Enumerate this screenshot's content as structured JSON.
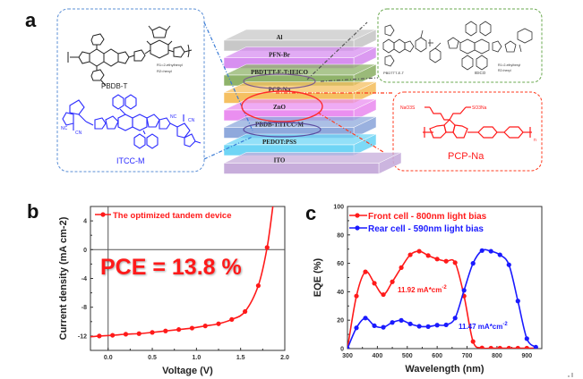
{
  "figure": {
    "panels": {
      "a": {
        "letter": "a"
      },
      "b": {
        "letter": "b"
      },
      "c": {
        "letter": "c"
      }
    },
    "colors": {
      "front_red": "#ff1a1a",
      "rear_blue": "#1a1aff",
      "donor_blue_box": "#5b8fd6",
      "green_box": "#6aa84f",
      "red_box": "#ff3b1f"
    }
  },
  "panel_a": {
    "left_box": {
      "molecule1_name": "PBDB-T",
      "molecule1_subs": [
        "R1=2-ethylhexyl",
        "R2=hexyl"
      ],
      "molecule2_name": "ITCC-M",
      "molecule2_groups": [
        "NC",
        "CN",
        "NC",
        "CN"
      ]
    },
    "top_right_box": {
      "molecule1_name": "PBDTTT-E-T",
      "molecule2_name": "IEICO",
      "subs": [
        "R1=2-ethylhexyl",
        "R2=hexyl"
      ]
    },
    "bottom_right_box": {
      "molecule_name": "PCP-Na",
      "group_left": "NaO3S",
      "group_right": "SO3Na",
      "repeat": "n"
    },
    "stack_layers": [
      {
        "name": "Al",
        "color": "#c8c8c8"
      },
      {
        "name": "PFN-Br",
        "color": "#d78ff0"
      },
      {
        "name": "PBDTTT-E-T:IEICO",
        "color": "#8fb36a"
      },
      {
        "name": "PCP-Na",
        "color": "#f5c062"
      },
      {
        "name": "ZnO",
        "color": "#ea8ff0"
      },
      {
        "name": "PBDB-T:ITCC-M",
        "color": "#8fa9dc"
      },
      {
        "name": "PEDOT:PSS",
        "color": "#6fd5f5"
      },
      {
        "name": "ITO",
        "color": "#c7addb"
      }
    ]
  },
  "chart_data": [
    {
      "id": "b",
      "type": "line",
      "title": "",
      "xlabel": "Voltage (V)",
      "ylabel": "Current density (mA cm-2)",
      "xlim": [
        -0.2,
        2.0
      ],
      "ylim": [
        -14,
        6
      ],
      "xticks": [
        0.0,
        0.5,
        1.0,
        1.5,
        2.0
      ],
      "xtick_labels": [
        "0.0",
        "0.5",
        "1.0",
        "1.5",
        "2.0"
      ],
      "yticks": [
        4,
        0,
        -4,
        -8,
        -12
      ],
      "ytick_labels": [
        "4",
        "0",
        "-4",
        "-8",
        "-12"
      ],
      "legend": "top-left",
      "annotation": "PCE = 13.8 %",
      "series": [
        {
          "name": "The optimized tandem device",
          "color": "#ff1a1a",
          "x": [
            -0.1,
            0.05,
            0.2,
            0.35,
            0.5,
            0.65,
            0.8,
            0.95,
            1.1,
            1.25,
            1.4,
            1.55,
            1.7,
            1.8
          ],
          "y": [
            -12.0,
            -11.9,
            -11.75,
            -11.67,
            -11.5,
            -11.3,
            -11.1,
            -10.9,
            -10.6,
            -10.3,
            -9.7,
            -8.6,
            -5.0,
            0.3
          ]
        }
      ]
    },
    {
      "id": "c",
      "type": "line",
      "title": "",
      "xlabel": "Wavelength (nm)",
      "ylabel": "EQE (%)",
      "xlim": [
        300,
        950
      ],
      "ylim": [
        0,
        100
      ],
      "xticks": [
        300,
        400,
        500,
        600,
        700,
        800,
        900
      ],
      "xtick_labels": [
        "300",
        "400",
        "500",
        "600",
        "700",
        "800",
        "900"
      ],
      "yticks": [
        0,
        20,
        40,
        60,
        80,
        100
      ],
      "ytick_labels": [
        "0",
        "20",
        "40",
        "60",
        "80",
        "100"
      ],
      "legend": "top",
      "annotations": [
        {
          "text": "11.92 mA*cm",
          "sup": "-2",
          "color": "#ff1a1a"
        },
        {
          "text": "11.47 mA*cm",
          "sup": "-2",
          "color": "#1a1aff"
        }
      ],
      "series": [
        {
          "name": "Front cell - 800nm light bias",
          "color": "#ff1a1a",
          "x": [
            300,
            330,
            360,
            390,
            420,
            450,
            480,
            510,
            540,
            570,
            600,
            630,
            660,
            690,
            720,
            750,
            780,
            810,
            840,
            870,
            900,
            930
          ],
          "y": [
            0,
            37,
            54,
            46,
            38,
            47,
            57,
            66,
            68.5,
            65.5,
            63,
            61.5,
            60.5,
            37,
            5,
            0.5,
            0.3,
            0.3,
            0.3,
            0.3,
            0.3,
            0.2
          ]
        },
        {
          "name": "Rear cell - 590nm light bias",
          "color": "#1a1aff",
          "x": [
            300,
            330,
            360,
            390,
            420,
            450,
            480,
            510,
            540,
            570,
            600,
            630,
            660,
            690,
            720,
            750,
            780,
            810,
            840,
            870,
            900,
            930
          ],
          "y": [
            0,
            14.6,
            21.5,
            16.1,
            15,
            18.4,
            19.9,
            17.4,
            15.7,
            15.5,
            16.5,
            16.7,
            21.5,
            41,
            60,
            69,
            68.5,
            66,
            59,
            33.5,
            7,
            1
          ]
        }
      ]
    }
  ]
}
